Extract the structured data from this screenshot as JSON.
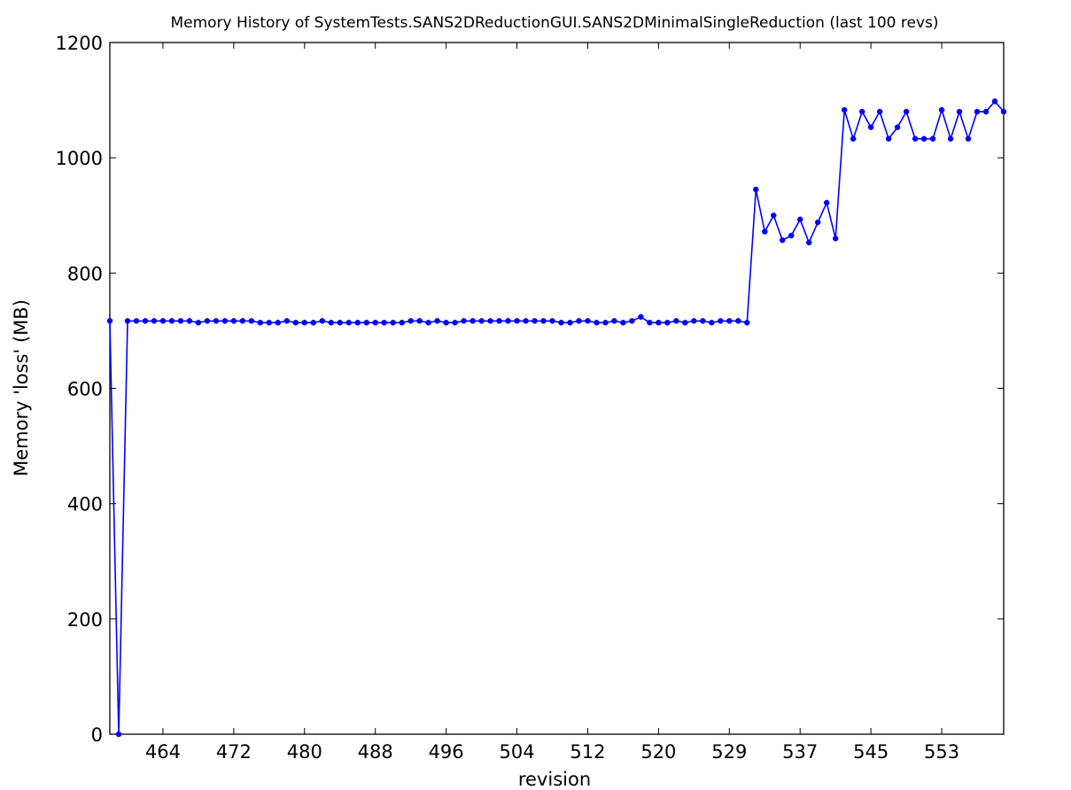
{
  "chart_data": {
    "type": "line",
    "title": "Memory History of SystemTests.SANS2DReductionGUI.SANS2DMinimalSingleReduction (last 100 revs)",
    "xlabel": "revision",
    "ylabel": "Memory 'loss' (MB)",
    "ylim": [
      0,
      1200
    ],
    "yticks": [
      "0",
      "200",
      "400",
      "600",
      "800",
      "1000",
      "1200"
    ],
    "xtick_labels": [
      "464",
      "472",
      "480",
      "488",
      "496",
      "504",
      "512",
      "520",
      "529",
      "537",
      "545",
      "553"
    ],
    "xtick_index": [
      6,
      14,
      22,
      30,
      38,
      46,
      54,
      62,
      70,
      78,
      86,
      94
    ],
    "grid": false,
    "color": "#0000ff",
    "series": [
      {
        "values": [
          717,
          0,
          717,
          717,
          717,
          717,
          717,
          717,
          717,
          717,
          714,
          717,
          717,
          717,
          717,
          717,
          717,
          714,
          714,
          714,
          717,
          714,
          714,
          714,
          717,
          714,
          714,
          714,
          714,
          714,
          714,
          714,
          714,
          714,
          717,
          717,
          714,
          717,
          714,
          714,
          717,
          717,
          717,
          717,
          717,
          717,
          717,
          717,
          717,
          717,
          717,
          714,
          714,
          717,
          717,
          714,
          714,
          717,
          714,
          717,
          724,
          714,
          714,
          714,
          717,
          714,
          717,
          717,
          714,
          717,
          717,
          717,
          714,
          945,
          872,
          900,
          857,
          865,
          893,
          853,
          888,
          922,
          860,
          1083,
          1033,
          1080,
          1053,
          1080,
          1033,
          1053,
          1080,
          1033,
          1033,
          1033,
          1083,
          1033,
          1080,
          1033,
          1080,
          1080,
          1098,
          1080
        ]
      }
    ]
  }
}
